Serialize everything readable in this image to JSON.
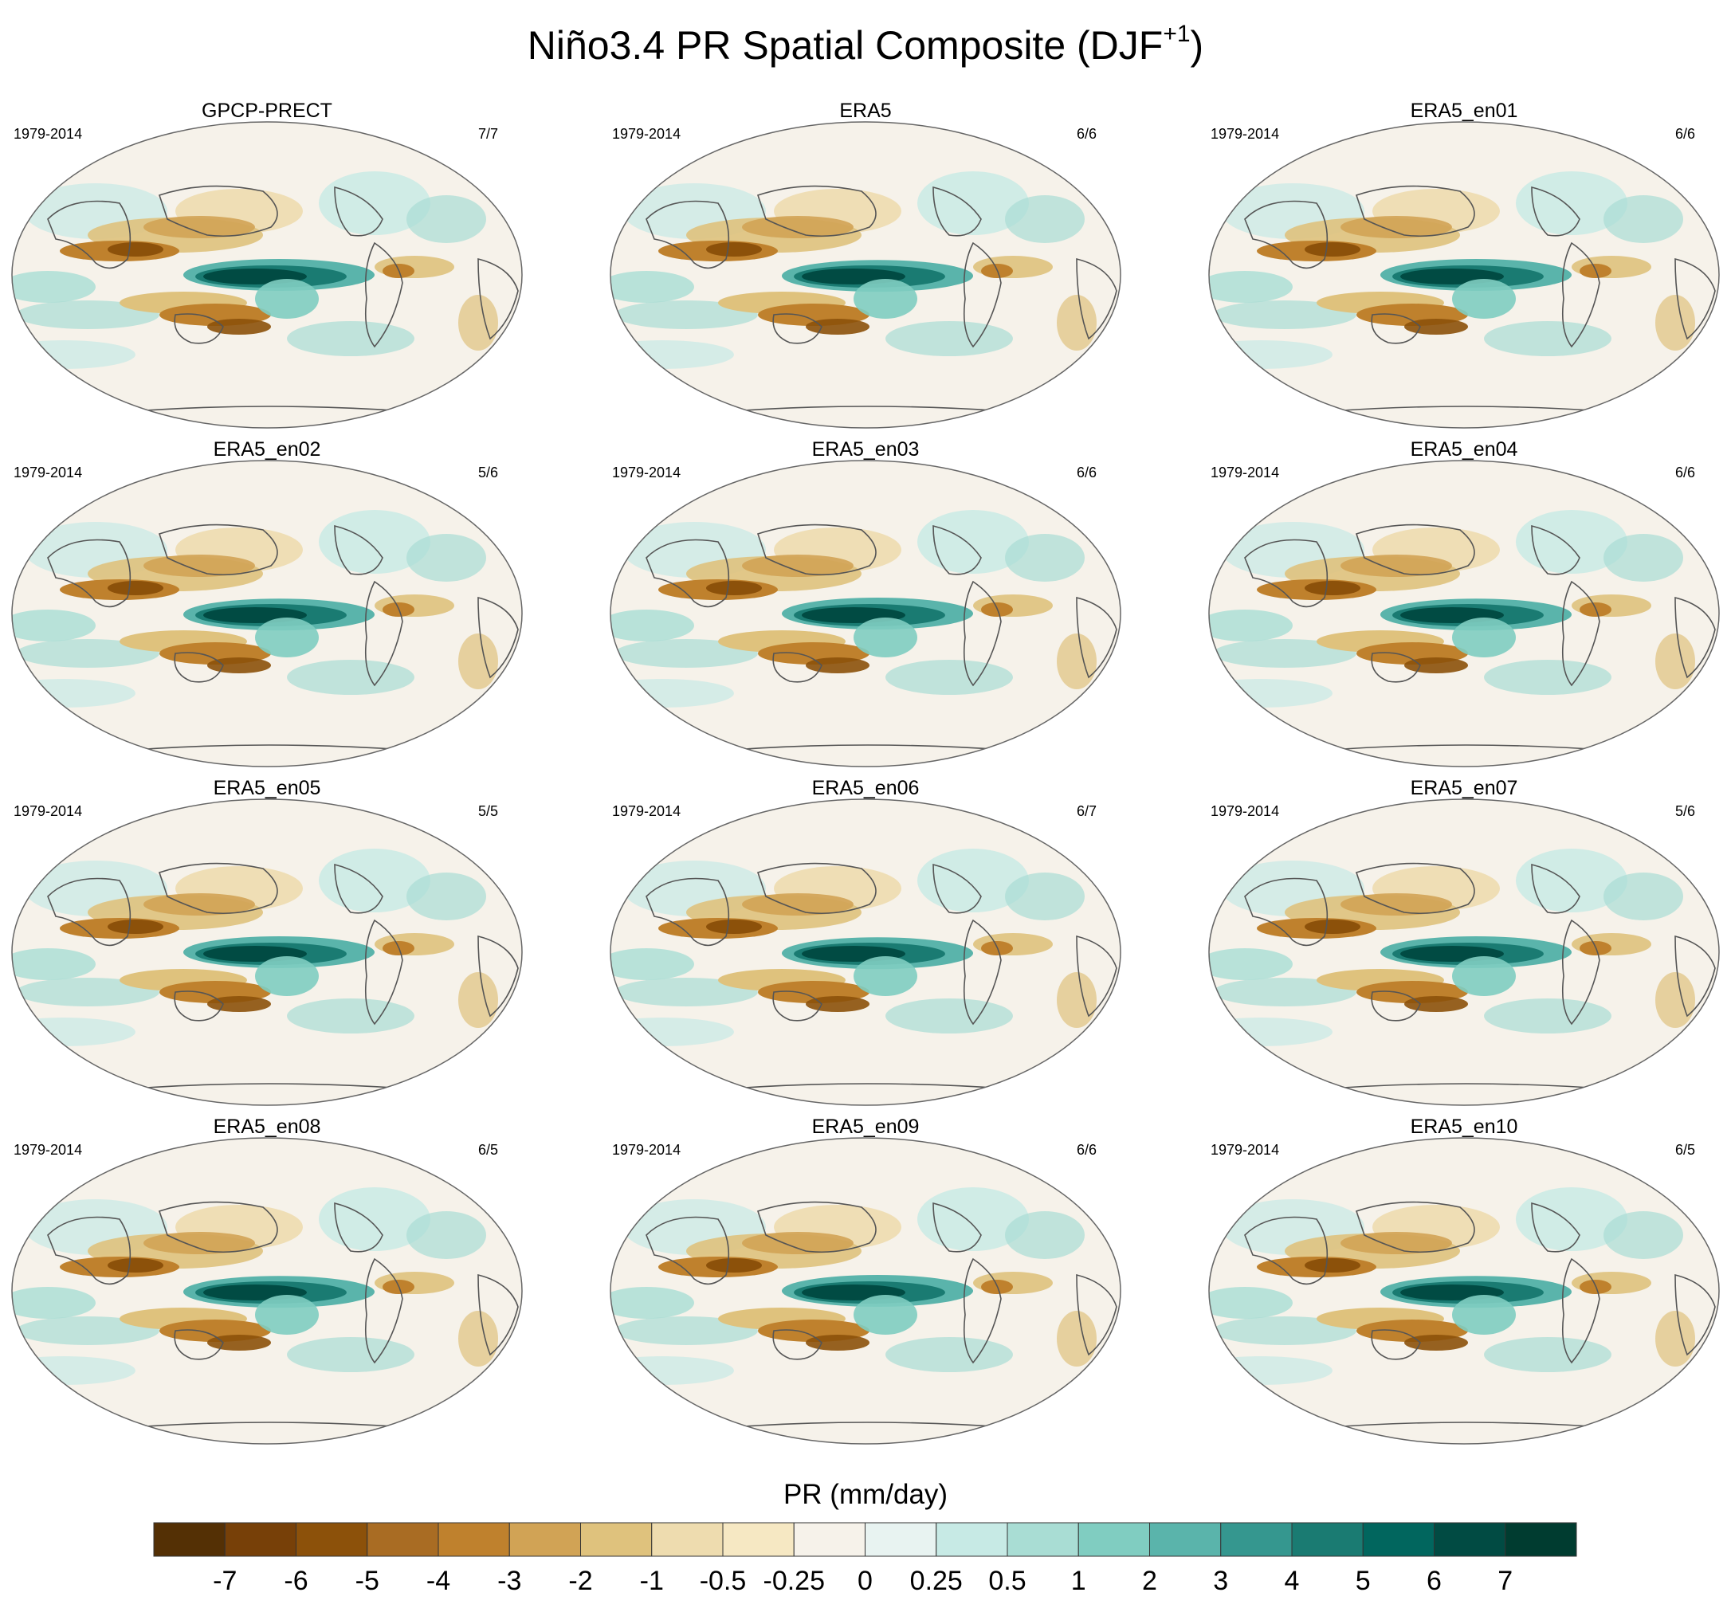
{
  "title": {
    "main": "Niño3.4 PR Spatial Composite (DJF",
    "superscript": "+1",
    "close": ")"
  },
  "panels": [
    {
      "name": "GPCP-PRECT",
      "period": "1979-2014",
      "count": "7/7"
    },
    {
      "name": "ERA5",
      "period": "1979-2014",
      "count": "6/6"
    },
    {
      "name": "ERA5_en01",
      "period": "1979-2014",
      "count": "6/6"
    },
    {
      "name": "ERA5_en02",
      "period": "1979-2014",
      "count": "5/6"
    },
    {
      "name": "ERA5_en03",
      "period": "1979-2014",
      "count": "6/6"
    },
    {
      "name": "ERA5_en04",
      "period": "1979-2014",
      "count": "6/6"
    },
    {
      "name": "ERA5_en05",
      "period": "1979-2014",
      "count": "5/5"
    },
    {
      "name": "ERA5_en06",
      "period": "1979-2014",
      "count": "6/7"
    },
    {
      "name": "ERA5_en07",
      "period": "1979-2014",
      "count": "5/6"
    },
    {
      "name": "ERA5_en08",
      "period": "1979-2014",
      "count": "6/5"
    },
    {
      "name": "ERA5_en09",
      "period": "1979-2014",
      "count": "6/6"
    },
    {
      "name": "ERA5_en10",
      "period": "1979-2014",
      "count": "6/5"
    }
  ],
  "colorbar": {
    "title": "PR (mm/day)",
    "labels": [
      "-7",
      "-6",
      "-5",
      "-4",
      "-3",
      "-2",
      "-1",
      "-0.5",
      "-0.25",
      "0",
      "0.25",
      "0.5",
      "1",
      "2",
      "3",
      "4",
      "5",
      "6",
      "7"
    ],
    "colors": [
      "#543005",
      "#774008",
      "#8c510a",
      "#a96c23",
      "#bf812d",
      "#d1a355",
      "#dfc27d",
      "#eedcaf",
      "#f6e8c3",
      "#f6f2ea",
      "#e8f3f1",
      "#c7eae5",
      "#a9ddd4",
      "#80cdc1",
      "#5ab4ab",
      "#35978f",
      "#1a7b72",
      "#01665e",
      "#014b43",
      "#003c30"
    ]
  },
  "colors": {
    "land_outline": "#555555",
    "map_border": "#666666"
  }
}
